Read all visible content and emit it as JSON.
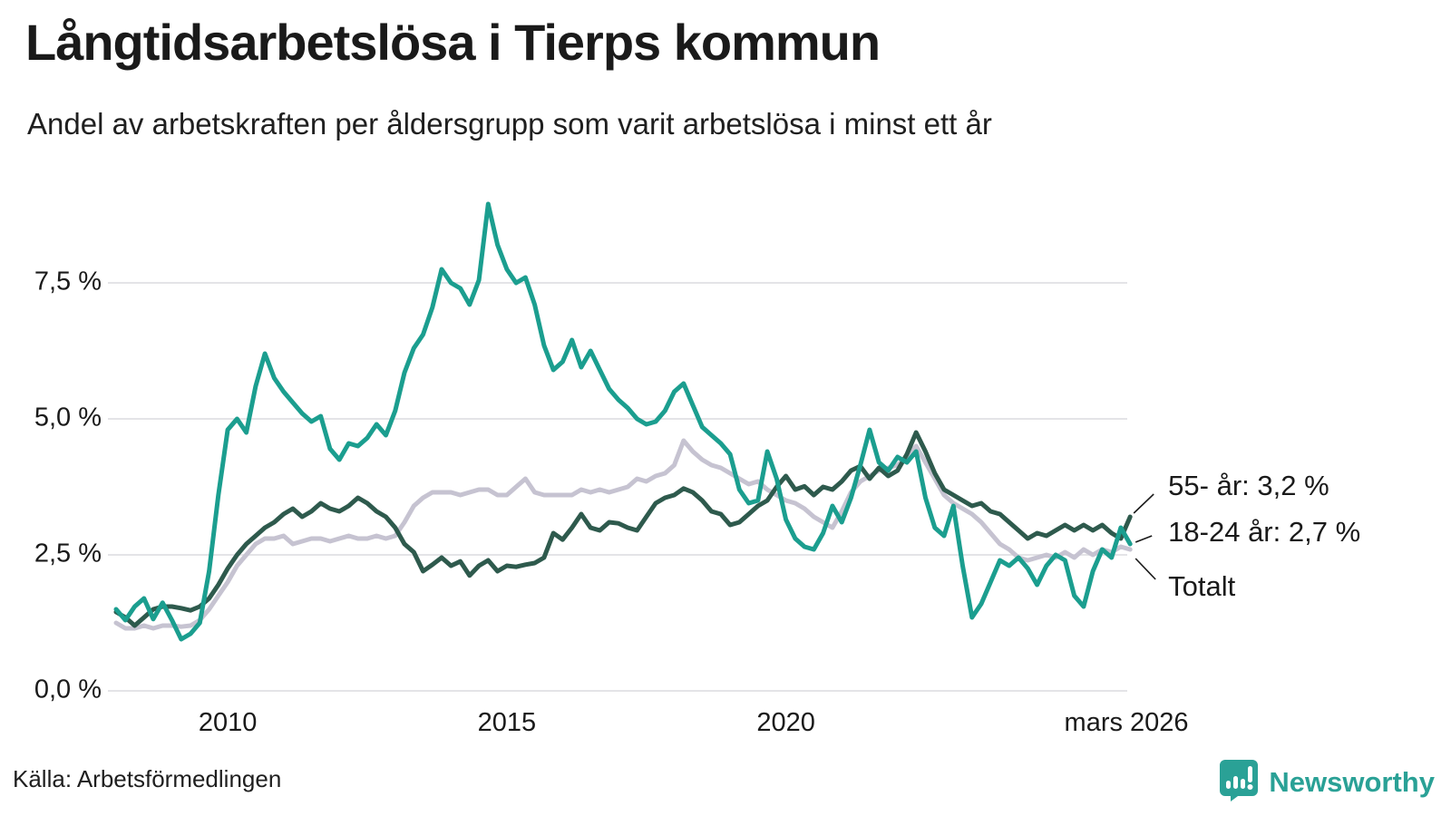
{
  "header": {
    "title": "Långtidsarbetslösa i Tierps kommun",
    "subtitle": "Andel av arbetskraften per åldersgrupp som varit arbetslösa i minst ett år"
  },
  "footer": {
    "source": "Källa: Arbetsförmedlingen",
    "brand": "Newsworthy"
  },
  "colors": {
    "teal": "#1b9e8f",
    "dark_green": "#2e5a4d",
    "gray": "#c6c3d1",
    "grid": "#e4e4e7",
    "text": "#1a1a1a",
    "brand_teal": "#2aa196"
  },
  "chart_data": {
    "type": "line",
    "title": "Långtidsarbetslösa i Tierps kommun",
    "subtitle": "Andel av arbetskraften per åldersgrupp som varit arbetslösa i minst ett år",
    "unit": "%",
    "x_start": 2008.0,
    "x_step_years": 0.16667,
    "xlim": [
      2008.0,
      2026.25
    ],
    "ylim": [
      0,
      9.3
    ],
    "grid": true,
    "legend_position": "end-of-line-labels",
    "y_ticks": [
      {
        "value": 0.0,
        "label": "0,0 %"
      },
      {
        "value": 2.5,
        "label": "2,5 %"
      },
      {
        "value": 5.0,
        "label": "5,0 %"
      },
      {
        "value": 7.5,
        "label": "7,5 %"
      }
    ],
    "x_ticks": [
      {
        "value": 2010,
        "label": "2010"
      },
      {
        "value": 2015,
        "label": "2015"
      },
      {
        "value": 2020,
        "label": "2020"
      },
      {
        "value": 2026.1,
        "label": "mars 2026"
      }
    ],
    "series": [
      {
        "name": "Totalt",
        "color_key": "gray",
        "end_label": "Totalt",
        "end_value": 2.6,
        "values": [
          1.25,
          1.15,
          1.15,
          1.2,
          1.15,
          1.2,
          1.2,
          1.18,
          1.2,
          1.3,
          1.5,
          1.75,
          2.0,
          2.3,
          2.5,
          2.7,
          2.8,
          2.8,
          2.85,
          2.7,
          2.75,
          2.8,
          2.8,
          2.75,
          2.8,
          2.85,
          2.8,
          2.8,
          2.85,
          2.8,
          2.85,
          3.1,
          3.4,
          3.55,
          3.65,
          3.65,
          3.65,
          3.6,
          3.65,
          3.7,
          3.7,
          3.6,
          3.6,
          3.75,
          3.9,
          3.65,
          3.6,
          3.6,
          3.6,
          3.6,
          3.7,
          3.65,
          3.7,
          3.65,
          3.7,
          3.75,
          3.9,
          3.85,
          3.95,
          4.0,
          4.15,
          4.6,
          4.4,
          4.25,
          4.15,
          4.1,
          4.0,
          3.9,
          3.8,
          3.85,
          3.7,
          3.6,
          3.5,
          3.45,
          3.35,
          3.2,
          3.1,
          3.0,
          3.3,
          3.65,
          3.85,
          3.95,
          4.05,
          4.1,
          4.15,
          4.3,
          4.5,
          4.2,
          3.9,
          3.6,
          3.45,
          3.35,
          3.25,
          3.1,
          2.9,
          2.7,
          2.6,
          2.45,
          2.4,
          2.45,
          2.5,
          2.45,
          2.55,
          2.45,
          2.6,
          2.5,
          2.6,
          2.55,
          2.65,
          2.6
        ]
      },
      {
        "name": "55- år",
        "color_key": "dark_green",
        "end_label": "55- år: 3,2 %",
        "end_value": 3.2,
        "values": [
          1.45,
          1.35,
          1.2,
          1.35,
          1.5,
          1.55,
          1.55,
          1.52,
          1.48,
          1.55,
          1.7,
          1.95,
          2.25,
          2.5,
          2.7,
          2.85,
          3.0,
          3.1,
          3.25,
          3.35,
          3.2,
          3.3,
          3.45,
          3.35,
          3.3,
          3.4,
          3.55,
          3.45,
          3.3,
          3.2,
          3.0,
          2.7,
          2.55,
          2.2,
          2.32,
          2.45,
          2.3,
          2.38,
          2.12,
          2.3,
          2.4,
          2.2,
          2.3,
          2.28,
          2.32,
          2.35,
          2.45,
          2.9,
          2.78,
          3.0,
          3.25,
          3.0,
          2.95,
          3.1,
          3.08,
          3.0,
          2.95,
          3.2,
          3.45,
          3.55,
          3.6,
          3.72,
          3.65,
          3.5,
          3.3,
          3.25,
          3.05,
          3.1,
          3.25,
          3.4,
          3.5,
          3.75,
          3.95,
          3.7,
          3.76,
          3.6,
          3.75,
          3.7,
          3.85,
          4.05,
          4.13,
          3.9,
          4.1,
          3.95,
          4.05,
          4.35,
          4.75,
          4.4,
          4.0,
          3.7,
          3.6,
          3.5,
          3.4,
          3.45,
          3.3,
          3.25,
          3.1,
          2.95,
          2.8,
          2.9,
          2.85,
          2.95,
          3.05,
          2.95,
          3.05,
          2.95,
          3.05,
          2.9,
          2.8,
          3.2
        ]
      },
      {
        "name": "18-24 år",
        "color_key": "teal",
        "end_label": "18-24 år: 2,7 %",
        "end_value": 2.7,
        "values": [
          1.5,
          1.3,
          1.55,
          1.7,
          1.32,
          1.62,
          1.3,
          0.95,
          1.05,
          1.25,
          2.2,
          3.6,
          4.8,
          5.0,
          4.75,
          5.6,
          6.2,
          5.75,
          5.5,
          5.3,
          5.1,
          4.95,
          5.05,
          4.45,
          4.25,
          4.55,
          4.5,
          4.65,
          4.9,
          4.7,
          5.15,
          5.85,
          6.3,
          6.55,
          7.05,
          7.75,
          7.5,
          7.4,
          7.1,
          7.55,
          8.95,
          8.2,
          7.75,
          7.5,
          7.6,
          7.1,
          6.35,
          5.9,
          6.05,
          6.45,
          5.95,
          6.25,
          5.9,
          5.55,
          5.35,
          5.2,
          5.0,
          4.9,
          4.95,
          5.15,
          5.5,
          5.65,
          5.25,
          4.85,
          4.7,
          4.55,
          4.35,
          3.7,
          3.45,
          3.5,
          4.4,
          3.9,
          3.15,
          2.8,
          2.65,
          2.6,
          2.9,
          3.4,
          3.1,
          3.55,
          4.15,
          4.8,
          4.2,
          4.05,
          4.3,
          4.2,
          4.4,
          3.55,
          3.0,
          2.85,
          3.4,
          2.3,
          1.35,
          1.6,
          2.0,
          2.4,
          2.3,
          2.45,
          2.25,
          1.95,
          2.3,
          2.5,
          2.4,
          1.75,
          1.55,
          2.2,
          2.6,
          2.45,
          3.0,
          2.7
        ]
      }
    ],
    "annotations": [
      {
        "series": "55- år",
        "label": "55- år: 3,2 %"
      },
      {
        "series": "18-24 år",
        "label": "18-24 år: 2,7 %"
      },
      {
        "series": "Totalt",
        "label": "Totalt"
      }
    ]
  }
}
